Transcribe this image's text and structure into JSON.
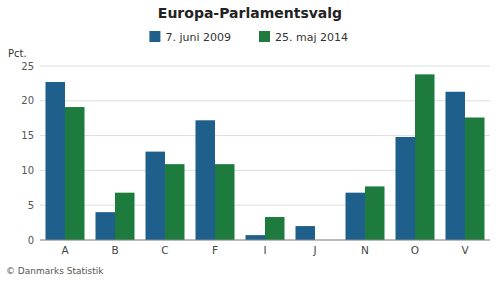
{
  "chart_data": {
    "type": "bar",
    "title": "Europa-Parlamentsvalg",
    "ylabel": "Pct.",
    "footer": "© Danmarks Statistik",
    "categories": [
      "A",
      "B",
      "C",
      "F",
      "I",
      "J",
      "N",
      "O",
      "V"
    ],
    "series": [
      {
        "name": "7. juni 2009",
        "color": "#1F5F8B",
        "values": [
          22.7,
          4.0,
          12.7,
          17.2,
          0.7,
          2.0,
          6.8,
          14.8,
          21.3
        ]
      },
      {
        "name": "25. maj 2014",
        "color": "#1E7B3E",
        "values": [
          19.1,
          6.8,
          10.9,
          10.9,
          3.3,
          0.0,
          7.7,
          23.8,
          17.6
        ]
      }
    ],
    "ylim": [
      0,
      25
    ],
    "yticks": [
      0,
      5,
      10,
      15,
      20,
      25
    ],
    "grid": true,
    "legend": "top"
  }
}
